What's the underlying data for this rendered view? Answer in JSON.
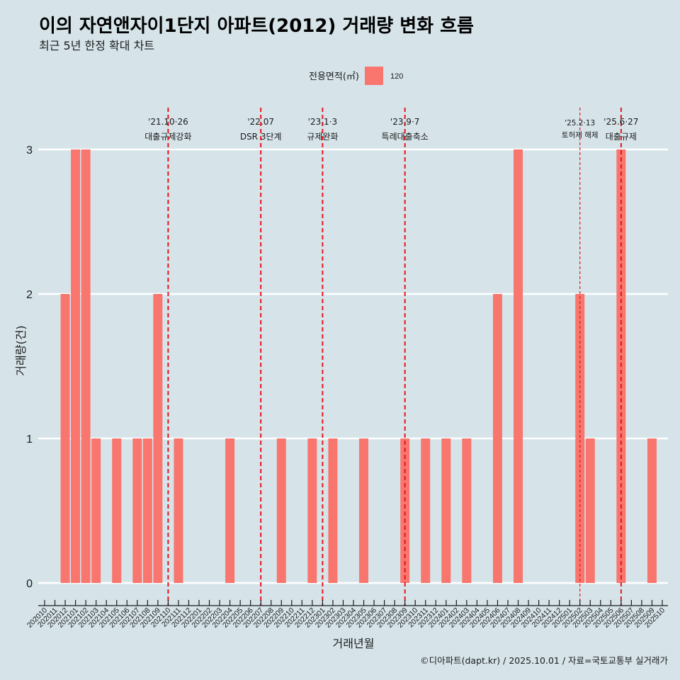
{
  "colors": {
    "background": "#D6E4EA",
    "bar": "#F8766D",
    "event_line": "#E8141C",
    "gridline": "#FFFFFF",
    "axis": "#1a1a1a"
  },
  "legend": {
    "title": "전용면적(㎡)",
    "items": [
      {
        "label": "120",
        "color": "#F8766D"
      }
    ]
  },
  "caption": "©디아파트(dapt.kr) / 2025.10.01 / 자료=국토교통부 실거래가",
  "chart_data": {
    "type": "bar",
    "title": "이의 자연앤자이1단지 아파트(2012) 거래량 변화 흐름",
    "subtitle": "최근 5년 한정 확대 차트",
    "xlabel": "거래년월",
    "ylabel": "거래량(건)",
    "ylim": [
      0,
      3
    ],
    "yticks": [
      "0",
      "1",
      "2",
      "3"
    ],
    "grid": true,
    "legend_position": "top",
    "categories": [
      "202010",
      "202011",
      "202012",
      "202101",
      "202102",
      "202103",
      "202104",
      "202105",
      "202106",
      "202107",
      "202108",
      "202109",
      "202110",
      "202111",
      "202112",
      "202201",
      "202202",
      "202203",
      "202204",
      "202205",
      "202206",
      "202207",
      "202208",
      "202209",
      "202210",
      "202211",
      "202212",
      "202301",
      "202302",
      "202303",
      "202304",
      "202305",
      "202306",
      "202307",
      "202308",
      "202309",
      "202310",
      "202311",
      "202312",
      "202401",
      "202402",
      "202403",
      "202404",
      "202405",
      "202406",
      "202407",
      "202408",
      "202409",
      "202410",
      "202411",
      "202412",
      "202501",
      "202502",
      "202503",
      "202504",
      "202505",
      "202506",
      "202507",
      "202508",
      "202509",
      "202510"
    ],
    "series": [
      {
        "name": "120",
        "values": [
          0,
          0,
          2,
          3,
          3,
          1,
          0,
          1,
          0,
          1,
          1,
          2,
          0,
          1,
          0,
          0,
          0,
          0,
          1,
          0,
          0,
          0,
          0,
          1,
          0,
          0,
          1,
          0,
          1,
          0,
          0,
          1,
          0,
          0,
          0,
          1,
          0,
          1,
          0,
          1,
          0,
          1,
          0,
          0,
          2,
          0,
          3,
          0,
          0,
          0,
          0,
          0,
          2,
          1,
          0,
          0,
          3,
          0,
          0,
          1,
          0
        ]
      }
    ],
    "annotations": [
      {
        "category": "202110",
        "date": "'21.10·26",
        "label": "대출규제강화",
        "weight": "major"
      },
      {
        "category": "202207",
        "date": "'22.07",
        "label": "DSR 3단계",
        "weight": "major"
      },
      {
        "category": "202301",
        "date": "'23.1·3",
        "label": "규제완화",
        "weight": "major"
      },
      {
        "category": "202309",
        "date": "'23.9·7",
        "label": "특례대출축소",
        "weight": "major"
      },
      {
        "category": "202502",
        "date": "'25.2·13",
        "label": "토허제 해제",
        "weight": "minor"
      },
      {
        "category": "202506",
        "date": "'25.6·27",
        "label": "대출규제",
        "weight": "major"
      }
    ]
  }
}
